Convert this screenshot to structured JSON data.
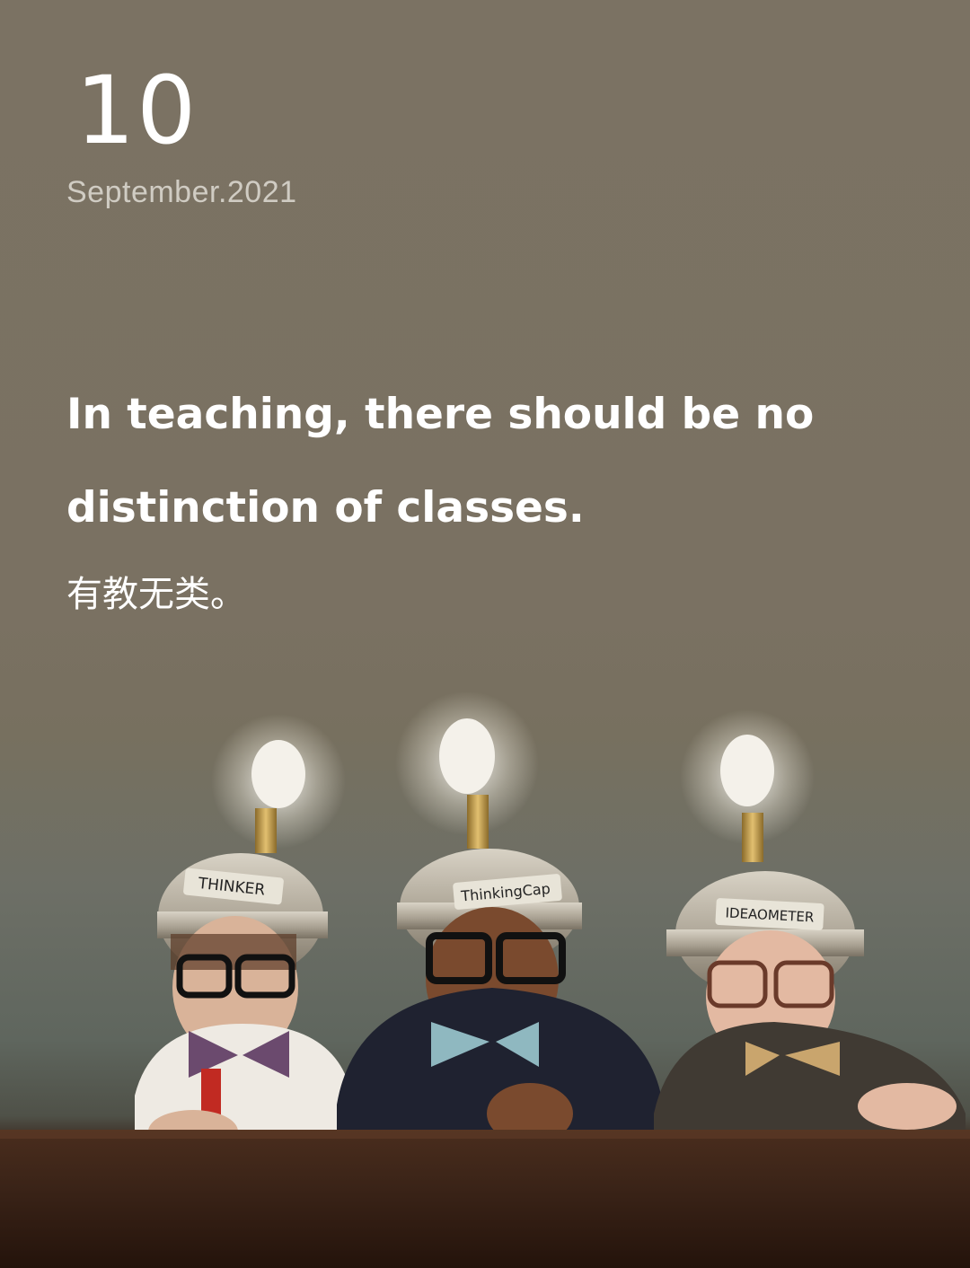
{
  "date": {
    "day": "10",
    "month_year": "September.2021"
  },
  "quote": {
    "english": "In teaching, there should be no distinction of classes.",
    "chinese": "有教无类。"
  },
  "photo": {
    "helmet_labels": [
      "THINKER",
      "ThinkingCap",
      "IDEAOMETER"
    ]
  },
  "colors": {
    "background": "#7a7061",
    "text_primary": "#ffffff",
    "text_secondary": "#d0ccc3",
    "table": "#3b2418"
  }
}
